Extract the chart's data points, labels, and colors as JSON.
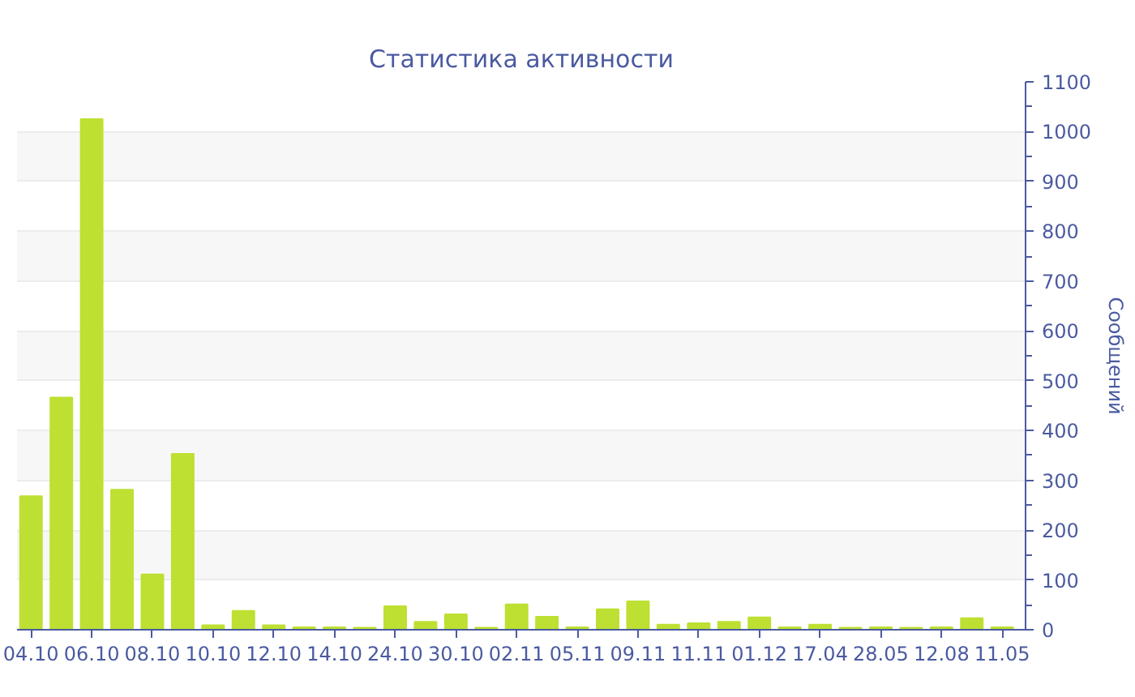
{
  "chart_data": {
    "type": "bar",
    "title": "Статистика активности",
    "ylabel": "Сообщений",
    "categories": [
      "04.10",
      null,
      "06.10",
      null,
      "08.10",
      null,
      "10.10",
      null,
      "12.10",
      null,
      "14.10",
      null,
      "24.10",
      null,
      "30.10",
      null,
      "02.11",
      null,
      "05.11",
      null,
      "09.11",
      null,
      "11.11",
      null,
      "01.12",
      null,
      "17.04",
      null,
      "28.05",
      null,
      "12.08",
      null,
      "11.05"
    ],
    "values": [
      268,
      466,
      1025,
      281,
      111,
      353,
      9,
      38,
      9,
      5,
      5,
      4,
      47,
      16,
      31,
      4,
      51,
      26,
      5,
      41,
      57,
      10,
      13,
      16,
      25,
      5,
      10,
      4,
      5,
      4,
      5,
      23,
      5
    ],
    "color": "#bde032",
    "ylim": [
      0,
      1100
    ],
    "yticks": [
      0,
      100,
      200,
      300,
      400,
      500,
      600,
      700,
      800,
      900,
      1000,
      1100
    ],
    "grid": "y"
  }
}
